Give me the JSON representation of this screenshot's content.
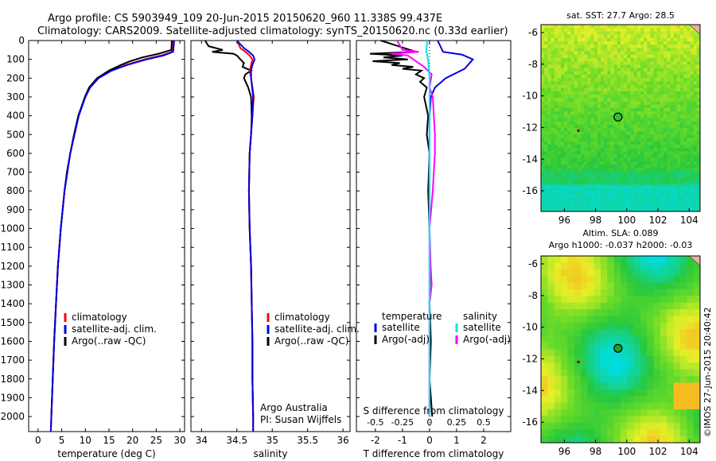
{
  "header": {
    "line1": "Argo profile: CS 5903949_109 20-Jun-2015 20150620_960 11.338S 99.437E",
    "line2": "Climatology: CARS2009. Satellite-adjusted climatology: synTS_20150620.nc (0.33d earlier)"
  },
  "credit": "©IMOS 27-Jun-2015 20:40:42",
  "colors": {
    "red": "#ff0000",
    "blue": "#0000e0",
    "black": "#000000",
    "cyan": "#00e5ee",
    "magenta": "#ff00ff"
  },
  "chart_data": [
    {
      "type": "line",
      "xlabel": "temperature (deg C)",
      "xticks": [
        0,
        5,
        10,
        15,
        20,
        25,
        30
      ],
      "xlim": [
        -2,
        31
      ],
      "ylim": [
        0,
        2080
      ],
      "yticks": [
        0,
        100,
        200,
        300,
        400,
        500,
        600,
        700,
        800,
        900,
        1000,
        1100,
        1200,
        1300,
        1400,
        1500,
        1600,
        1700,
        1800,
        1900,
        2000
      ],
      "legend": [
        "climatology",
        "satellite-adj. clim.",
        "Argo(..raw -QC)"
      ],
      "series": [
        {
          "name": "climatology",
          "depth": [
            0,
            60,
            80,
            100,
            130,
            160,
            200,
            250,
            300,
            400,
            500,
            600,
            700,
            800,
            1000,
            1200,
            1400,
            1600,
            1800,
            2000,
            2080
          ],
          "values": [
            28.5,
            28.3,
            26.0,
            22.5,
            18.5,
            15.5,
            12.8,
            11.0,
            10.0,
            8.6,
            7.7,
            6.8,
            6.2,
            5.6,
            4.8,
            4.2,
            3.8,
            3.4,
            3.1,
            2.8,
            2.7
          ]
        },
        {
          "name": "satellite-adj. clim.",
          "depth": [
            0,
            60,
            80,
            100,
            130,
            160,
            200,
            250,
            300,
            400,
            500,
            600,
            700,
            800,
            1000,
            1200,
            1400,
            1600,
            1800,
            2000,
            2080
          ],
          "values": [
            28.8,
            28.6,
            26.5,
            23.0,
            18.8,
            15.6,
            12.8,
            11.0,
            10.0,
            8.6,
            7.7,
            6.8,
            6.2,
            5.6,
            4.8,
            4.2,
            3.8,
            3.4,
            3.1,
            2.8,
            2.7
          ]
        },
        {
          "name": "Argo(..raw -QC)",
          "depth": [
            0,
            50,
            70,
            90,
            110,
            130,
            160,
            200,
            250,
            300,
            400,
            500,
            600,
            700,
            800,
            1000,
            1200,
            1400,
            1600,
            1800,
            2000
          ],
          "values": [
            28.3,
            28.2,
            25.5,
            22.0,
            19.5,
            17.5,
            15.0,
            12.5,
            10.8,
            9.9,
            8.5,
            7.6,
            6.8,
            6.1,
            5.6,
            4.8,
            4.2,
            3.8,
            3.4,
            3.1,
            2.8
          ]
        }
      ]
    },
    {
      "type": "line",
      "xlabel": "salinity",
      "xticks": [
        34,
        34.5,
        35,
        35.5,
        36
      ],
      "xlim": [
        33.85,
        36.1
      ],
      "ylim": [
        0,
        2080
      ],
      "legend": [
        "climatology",
        "satellite-adj. clim.",
        "Argo(..raw -QC)"
      ],
      "annotation": [
        "Argo Australia",
        "PI: Susan Wijffels"
      ],
      "series": [
        {
          "name": "climatology",
          "depth": [
            0,
            40,
            60,
            80,
            100,
            130,
            160,
            200,
            300,
            400,
            600,
            800,
            1000,
            1200,
            1400,
            1600,
            1800,
            2000,
            2080
          ],
          "values": [
            34.5,
            34.55,
            34.62,
            34.68,
            34.72,
            34.7,
            34.68,
            34.7,
            34.74,
            34.72,
            34.68,
            34.67,
            34.68,
            34.7,
            34.71,
            34.72,
            34.72,
            34.73,
            34.73
          ]
        },
        {
          "name": "satellite-adj. clim.",
          "depth": [
            0,
            40,
            60,
            80,
            100,
            130,
            160,
            200,
            300,
            400,
            600,
            800,
            1000,
            1200,
            1400,
            1600,
            1800,
            2000,
            2080
          ],
          "values": [
            34.5,
            34.6,
            34.67,
            34.73,
            34.75,
            34.72,
            34.7,
            34.7,
            34.73,
            34.72,
            34.68,
            34.67,
            34.68,
            34.7,
            34.71,
            34.72,
            34.72,
            34.73,
            34.73
          ]
        },
        {
          "name": "Argo(..raw -QC)",
          "depth": [
            0,
            30,
            50,
            60,
            70,
            80,
            100,
            120,
            140,
            160,
            180,
            200,
            250,
            300,
            400,
            500,
            600,
            800,
            1000,
            1200,
            1400,
            1600,
            1800,
            2000
          ],
          "values": [
            34.05,
            34.1,
            34.3,
            34.15,
            34.45,
            34.5,
            34.55,
            34.6,
            34.58,
            34.7,
            34.62,
            34.6,
            34.66,
            34.7,
            34.71,
            34.7,
            34.68,
            34.67,
            34.68,
            34.7,
            34.71,
            34.72,
            34.72,
            34.73
          ]
        }
      ]
    },
    {
      "type": "line",
      "xlabel": "T difference from climatology",
      "xlabel_top": "S difference from climatology",
      "xticks": [
        -2,
        -1,
        0,
        1,
        2
      ],
      "xticks_top": [
        -0.5,
        -0.25,
        0,
        0.25,
        0.5
      ],
      "xlim": [
        -2.7,
        3.0
      ],
      "ylim": [
        0,
        2080
      ],
      "legend_left_title": "temperature",
      "legend_left": [
        "satellite",
        "Argo(-adj)"
      ],
      "legend_right_title": "salinity",
      "legend_right": [
        "satellite",
        "Argo(-adj)"
      ],
      "series": [
        {
          "name": "T satellite",
          "depth": [
            0,
            60,
            75,
            100,
            150,
            200,
            250,
            300,
            400,
            600,
            1000,
            2000
          ],
          "values": [
            0.3,
            0.5,
            1.2,
            1.6,
            1.3,
            0.6,
            0.2,
            0.05,
            0.0,
            0.0,
            0.0,
            0.0
          ]
        },
        {
          "name": "T Argo",
          "depth": [
            0,
            60,
            70,
            80,
            90,
            100,
            110,
            120,
            130,
            140,
            150,
            160,
            180,
            200,
            220,
            250,
            300,
            400,
            500,
            600,
            800,
            1000,
            1200,
            1400,
            1600,
            1800,
            2000
          ],
          "values": [
            -1.8,
            -0.5,
            -2.2,
            -1.0,
            -1.7,
            -0.8,
            -2.1,
            -1.1,
            -1.4,
            -0.6,
            -1.0,
            -0.3,
            -0.5,
            -0.2,
            -0.35,
            -0.1,
            -0.2,
            -0.05,
            -0.1,
            0.0,
            -0.05,
            0.0,
            0.02,
            0.0,
            0.05,
            0.0,
            0.1
          ]
        },
        {
          "name": "S satellite",
          "depth": [
            0,
            60,
            80,
            120,
            200,
            300,
            500,
            1000,
            2000
          ],
          "values": [
            -0.02,
            -0.03,
            -0.02,
            -0.01,
            0.0,
            0.0,
            0.0,
            0.0,
            0.0
          ]
        },
        {
          "name": "S Argo",
          "depth": [
            0,
            50,
            60,
            70,
            80,
            100,
            140,
            180,
            250,
            300,
            400,
            500,
            600,
            700,
            800,
            1000,
            1200,
            1300,
            1400,
            1600,
            2000
          ],
          "values": [
            -0.3,
            -0.25,
            -0.1,
            -0.35,
            -0.2,
            -0.15,
            -0.05,
            0.02,
            0.0,
            0.03,
            0.04,
            0.05,
            0.05,
            0.04,
            0.03,
            0.0,
            0.01,
            0.02,
            0.0,
            0.0,
            0.0
          ]
        }
      ]
    },
    {
      "type": "heatmap",
      "title": "sat. SST: 27.7 Argo: 28.5",
      "xticks": [
        96,
        98,
        100,
        102,
        104
      ],
      "yticks": [
        -6,
        -8,
        -10,
        -12,
        -14,
        -16
      ],
      "xlim": [
        94.5,
        104.7
      ],
      "ylim": [
        -17.3,
        -5.5
      ],
      "marker": {
        "lon": 99.437,
        "lat": -11.338
      },
      "track": [
        {
          "lon": 96.9,
          "lat": -12.2
        }
      ]
    },
    {
      "type": "heatmap",
      "title": "Altim. SLA: 0.089",
      "subtitle": "Argo h1000: -0.037 h2000: -0.03",
      "xticks": [
        96,
        98,
        100,
        102,
        104
      ],
      "yticks": [
        -6,
        -8,
        -10,
        -12,
        -14,
        -16
      ],
      "xlim": [
        94.5,
        104.7
      ],
      "ylim": [
        -17.3,
        -5.5
      ],
      "marker": {
        "lon": 99.437,
        "lat": -11.338
      },
      "track": [
        {
          "lon": 96.9,
          "lat": -12.2
        }
      ]
    }
  ]
}
